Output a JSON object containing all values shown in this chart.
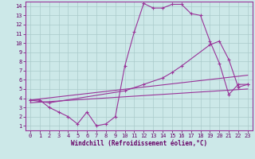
{
  "xlabel": "Windchill (Refroidissement éolien,°C)",
  "bg_color": "#cce8e8",
  "line_color": "#993399",
  "grid_color": "#aacaca",
  "xlim": [
    -0.5,
    23.5
  ],
  "ylim": [
    0.5,
    14.5
  ],
  "xticks": [
    0,
    1,
    2,
    3,
    4,
    5,
    6,
    7,
    8,
    9,
    10,
    11,
    12,
    13,
    14,
    15,
    16,
    17,
    18,
    19,
    20,
    21,
    22,
    23
  ],
  "yticks": [
    1,
    2,
    3,
    4,
    5,
    6,
    7,
    8,
    9,
    10,
    11,
    12,
    13,
    14
  ],
  "line1_x": [
    0,
    1,
    2,
    3,
    4,
    5,
    6,
    7,
    8,
    9,
    10,
    11,
    12,
    13,
    14,
    15,
    16,
    17,
    18,
    19,
    20,
    21,
    22,
    23
  ],
  "line1_y": [
    3.8,
    3.8,
    3.0,
    2.5,
    2.0,
    1.2,
    2.5,
    1.0,
    1.2,
    2.0,
    7.5,
    11.2,
    14.3,
    13.8,
    13.8,
    14.2,
    14.2,
    13.2,
    13.0,
    10.2,
    7.8,
    4.4,
    5.5,
    5.5
  ],
  "line2_x": [
    0,
    2,
    10,
    12,
    14,
    15,
    16,
    19,
    20,
    21,
    22,
    23
  ],
  "line2_y": [
    3.8,
    3.5,
    4.8,
    5.5,
    6.2,
    6.8,
    7.5,
    9.8,
    10.2,
    8.2,
    5.2,
    5.5
  ],
  "line3_x": [
    0,
    23
  ],
  "line3_y": [
    3.8,
    6.5
  ],
  "line4_x": [
    0,
    23
  ],
  "line4_y": [
    3.5,
    5.0
  ]
}
